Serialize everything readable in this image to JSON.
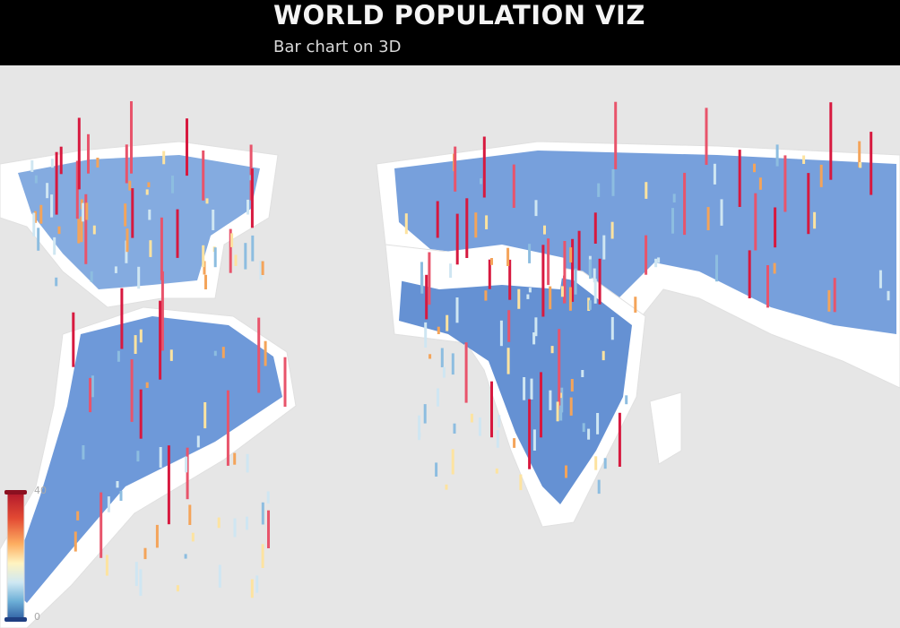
{
  "header": {
    "title": "WORLD POPULATION VIZ",
    "subtitle": "Bar chart on 3D"
  },
  "legend": {
    "max": 40,
    "min": 0
  }
}
